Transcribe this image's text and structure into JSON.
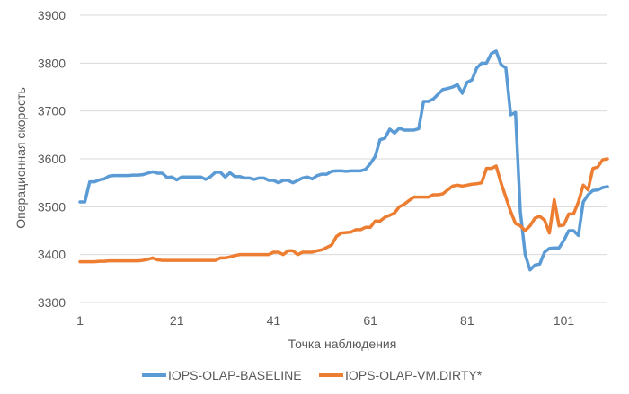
{
  "chart_data": {
    "type": "line",
    "title": "",
    "xlabel": "Точка наблюдения",
    "ylabel": "Операционная скорость",
    "ylim": [
      3300,
      3900
    ],
    "yticks": [
      3300,
      3400,
      3500,
      3600,
      3700,
      3800,
      3900
    ],
    "xlim": [
      1,
      110
    ],
    "xticks": [
      1,
      21,
      41,
      61,
      81,
      101
    ],
    "xtick_labels": [
      "1",
      "21",
      "41",
      "61",
      "81",
      "101"
    ],
    "ytick_labels": [
      "3300",
      "3400",
      "3500",
      "3600",
      "3700",
      "3800",
      "3900"
    ],
    "grid": true,
    "legend_position": "bottom",
    "series": [
      {
        "name": "IOPS-OLAP-BASELINE",
        "color": "#5b9bd5",
        "x": [
          1,
          2,
          3,
          4,
          5,
          6,
          7,
          8,
          9,
          10,
          11,
          12,
          13,
          14,
          15,
          16,
          17,
          18,
          19,
          20,
          21,
          22,
          23,
          24,
          25,
          26,
          27,
          28,
          29,
          30,
          31,
          32,
          33,
          34,
          35,
          36,
          37,
          38,
          39,
          40,
          41,
          42,
          43,
          44,
          45,
          46,
          47,
          48,
          49,
          50,
          51,
          52,
          53,
          54,
          55,
          56,
          57,
          58,
          59,
          60,
          61,
          62,
          63,
          64,
          65,
          66,
          67,
          68,
          69,
          70,
          71,
          72,
          73,
          74,
          75,
          76,
          77,
          78,
          79,
          80,
          81,
          82,
          83,
          84,
          85,
          86,
          87,
          88,
          89,
          90,
          91,
          92,
          93,
          94,
          95,
          96,
          97,
          98,
          99,
          100,
          101,
          102,
          103,
          104,
          105,
          106,
          107,
          108,
          109,
          110
        ],
        "values": [
          3510,
          3510,
          3552,
          3552,
          3556,
          3558,
          3564,
          3565,
          3565,
          3565,
          3565,
          3566,
          3566,
          3567,
          3570,
          3573,
          3570,
          3570,
          3561,
          3562,
          3556,
          3562,
          3562,
          3562,
          3562,
          3562,
          3557,
          3563,
          3572,
          3572,
          3562,
          3571,
          3563,
          3563,
          3560,
          3560,
          3557,
          3560,
          3560,
          3555,
          3555,
          3550,
          3555,
          3555,
          3550,
          3555,
          3560,
          3562,
          3558,
          3565,
          3568,
          3568,
          3574,
          3575,
          3575,
          3574,
          3575,
          3575,
          3575,
          3578,
          3590,
          3605,
          3640,
          3643,
          3662,
          3654,
          3664,
          3660,
          3660,
          3660,
          3663,
          3720,
          3720,
          3725,
          3735,
          3745,
          3747,
          3750,
          3755,
          3737,
          3760,
          3765,
          3790,
          3800,
          3800,
          3820,
          3825,
          3797,
          3790,
          3692,
          3697,
          3490,
          3400,
          3368,
          3378,
          3380,
          3405,
          3413,
          3414,
          3414,
          3430,
          3450,
          3450,
          3440,
          3510,
          3525,
          3534,
          3535,
          3540,
          3542
        ]
      },
      {
        "name": "IOPS-OLAP-VM.DIRTY*",
        "color": "#ed7d31",
        "x": [
          1,
          2,
          3,
          4,
          5,
          6,
          7,
          8,
          9,
          10,
          11,
          12,
          13,
          14,
          15,
          16,
          17,
          18,
          19,
          20,
          21,
          22,
          23,
          24,
          25,
          26,
          27,
          28,
          29,
          30,
          31,
          32,
          33,
          34,
          35,
          36,
          37,
          38,
          39,
          40,
          41,
          42,
          43,
          44,
          45,
          46,
          47,
          48,
          49,
          50,
          51,
          52,
          53,
          54,
          55,
          56,
          57,
          58,
          59,
          60,
          61,
          62,
          63,
          64,
          65,
          66,
          67,
          68,
          69,
          70,
          71,
          72,
          73,
          74,
          75,
          76,
          77,
          78,
          79,
          80,
          81,
          82,
          83,
          84,
          85,
          86,
          87,
          88,
          89,
          90,
          91,
          92,
          93,
          94,
          95,
          96,
          97,
          98,
          99,
          100,
          101,
          102,
          103,
          104,
          105,
          106,
          107,
          108,
          109,
          110
        ],
        "values": [
          3385,
          3385,
          3385,
          3385,
          3386,
          3386,
          3387,
          3387,
          3387,
          3387,
          3387,
          3387,
          3387,
          3388,
          3390,
          3393,
          3389,
          3388,
          3388,
          3388,
          3388,
          3388,
          3388,
          3388,
          3388,
          3388,
          3388,
          3388,
          3388,
          3393,
          3393,
          3395,
          3398,
          3400,
          3400,
          3400,
          3400,
          3400,
          3400,
          3400,
          3405,
          3405,
          3400,
          3408,
          3408,
          3400,
          3405,
          3405,
          3405,
          3408,
          3410,
          3415,
          3420,
          3438,
          3445,
          3446,
          3447,
          3452,
          3452,
          3457,
          3457,
          3470,
          3470,
          3478,
          3482,
          3487,
          3500,
          3505,
          3513,
          3520,
          3520,
          3520,
          3520,
          3525,
          3525,
          3527,
          3535,
          3543,
          3545,
          3543,
          3545,
          3547,
          3548,
          3550,
          3580,
          3580,
          3585,
          3550,
          3520,
          3490,
          3465,
          3460,
          3450,
          3460,
          3476,
          3480,
          3472,
          3445,
          3515,
          3460,
          3462,
          3485,
          3485,
          3510,
          3545,
          3535,
          3580,
          3583,
          3598,
          3600
        ]
      }
    ]
  }
}
